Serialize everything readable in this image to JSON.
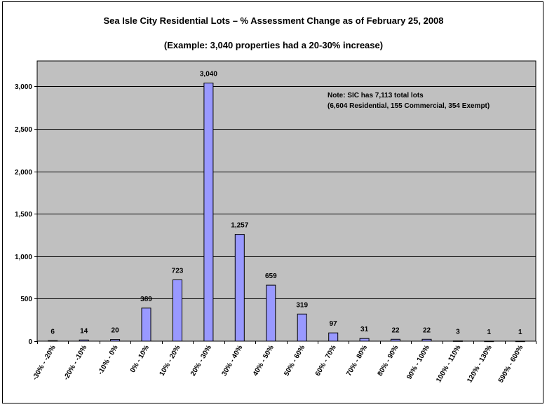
{
  "chart_data": {
    "type": "bar",
    "title": "Sea Isle City Residential Lots – % Assessment Change as of February 25, 2008",
    "subtitle": "(Example: 3,040 properties had a 20-30% increase)",
    "categories": [
      "-30% - -20%",
      "-20% - -10%",
      "-10% - 0%",
      "0% - 10%",
      "10% - 20%",
      "20% - 30%",
      "30% - 40%",
      "40% - 50%",
      "50% - 60%",
      "60% - 70%",
      "70% - 80%",
      "80% - 90%",
      "90% - 100%",
      "100% - 110%",
      "120% - 130%",
      "590% - 600%"
    ],
    "values": [
      6,
      14,
      20,
      389,
      723,
      3040,
      1257,
      659,
      319,
      97,
      31,
      22,
      22,
      3,
      1,
      1
    ],
    "data_labels": [
      "6",
      "14",
      "20",
      "389",
      "723",
      "3,040",
      "1,257",
      "659",
      "319",
      "97",
      "31",
      "22",
      "22",
      "3",
      "1",
      "1"
    ],
    "yticks": [
      "0",
      "500",
      "1,000",
      "1,500",
      "2,000",
      "2,500",
      "3,000"
    ],
    "ytick_values": [
      0,
      500,
      1000,
      1500,
      2000,
      2500,
      3000
    ],
    "ylim": [
      0,
      3300
    ],
    "xlabel": "",
    "ylabel": "",
    "grid": true,
    "note_lines": [
      "Note:  SIC has 7,113 total lots",
      "(6,604 Residential, 155 Commercial, 354 Exempt)"
    ],
    "colors": {
      "plot_background": "#c0c0c0",
      "bar_fill": "#9999ff",
      "bar_stroke": "#000000",
      "gridline": "#000000"
    }
  }
}
